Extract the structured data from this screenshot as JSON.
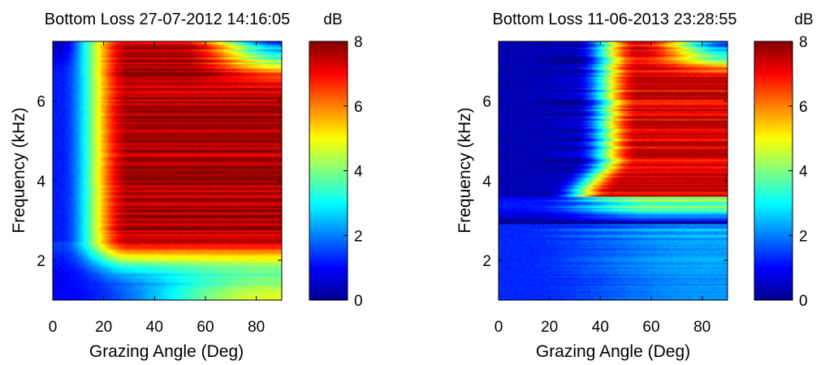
{
  "chart_data": [
    {
      "type": "heatmap",
      "title": "Bottom Loss 27-07-2012 14:16:05",
      "xlabel": "Grazing Angle (Deg)",
      "ylabel": "Frequency (kHz)",
      "xlim": [
        0,
        90
      ],
      "ylim": [
        1,
        7.5
      ],
      "xticks": [
        0,
        20,
        40,
        60,
        80
      ],
      "yticks": [
        2,
        4,
        6
      ],
      "colorbar": {
        "label": "dB",
        "range": [
          0,
          8
        ],
        "ticks": [
          0,
          2,
          4,
          6,
          8
        ],
        "colormap": "jet"
      },
      "profile": {
        "description_points": [
          {
            "freq_kHz": 1.2,
            "angle_deg": 0,
            "dB": 0.8
          },
          {
            "freq_kHz": 1.5,
            "angle_deg": 45,
            "dB": 3.0
          },
          {
            "freq_kHz": 2.0,
            "angle_deg": 80,
            "dB": 4.5
          },
          {
            "freq_kHz": 3.0,
            "angle_deg": 5,
            "dB": 2.0
          },
          {
            "freq_kHz": 3.0,
            "angle_deg": 50,
            "dB": 6.5
          },
          {
            "freq_kHz": 4.0,
            "angle_deg": 15,
            "dB": 4.5
          },
          {
            "freq_kHz": 4.0,
            "angle_deg": 60,
            "dB": 7.0
          },
          {
            "freq_kHz": 6.0,
            "angle_deg": 40,
            "dB": 7.5
          },
          {
            "freq_kHz": 7.3,
            "angle_deg": 70,
            "dB": 2.5
          }
        ]
      }
    },
    {
      "type": "heatmap",
      "title": "Bottom Loss 11-06-2013 23:28:55",
      "xlabel": "Grazing Angle (Deg)",
      "ylabel": "Frequency (kHz)",
      "xlim": [
        0,
        90
      ],
      "ylim": [
        1,
        7.5
      ],
      "xticks": [
        0,
        20,
        40,
        60,
        80
      ],
      "yticks": [
        2,
        4,
        6
      ],
      "colorbar": {
        "label": "dB",
        "range": [
          0,
          8
        ],
        "ticks": [
          0,
          2,
          4,
          6,
          8
        ],
        "colormap": "jet"
      },
      "profile": {
        "description_points": [
          {
            "freq_kHz": 1.5,
            "angle_deg": 40,
            "dB": 1.5
          },
          {
            "freq_kHz": 2.5,
            "angle_deg": 80,
            "dB": 2.0
          },
          {
            "freq_kHz": 3.3,
            "angle_deg": 40,
            "dB": 3.5
          },
          {
            "freq_kHz": 5.0,
            "angle_deg": 10,
            "dB": 0.3
          },
          {
            "freq_kHz": 5.0,
            "angle_deg": 60,
            "dB": 6.5
          },
          {
            "freq_kHz": 6.5,
            "angle_deg": 50,
            "dB": 7.0
          },
          {
            "freq_kHz": 7.3,
            "angle_deg": 80,
            "dB": 1.5
          }
        ]
      }
    }
  ]
}
